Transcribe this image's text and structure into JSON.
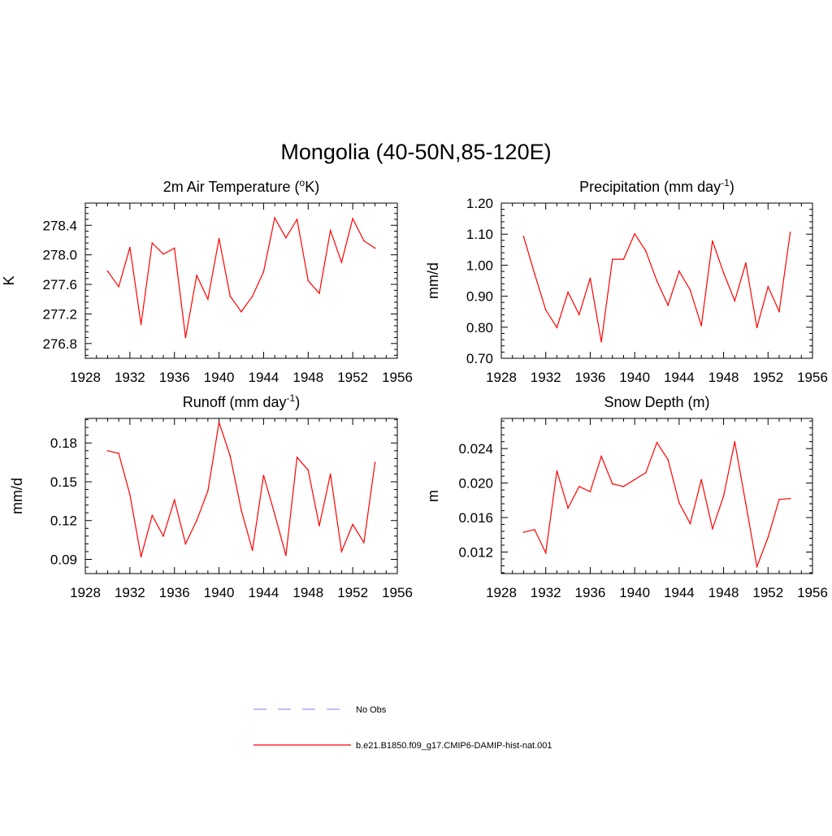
{
  "figure": {
    "title": "Mongolia (40-50N,85-120E)"
  },
  "legend": [
    {
      "label": "No Obs",
      "color": "#9999ff",
      "dash": true
    },
    {
      "label": "b.e21.B1850.f09_g17.CMIP6-DAMIP-hist-nat.001",
      "color": "#ff0000",
      "dash": false
    }
  ],
  "chart_data": [
    {
      "type": "line",
      "title": "2m Air Temperature (°K)",
      "title_base": "2m Air Temperature (",
      "title_sup": "o",
      "title_tail": "K)",
      "xlabel": "",
      "ylabel": "K",
      "xlim": [
        1928,
        1956
      ],
      "ylim": [
        276.6,
        278.7
      ],
      "xticks": [
        1928,
        1932,
        1936,
        1940,
        1944,
        1948,
        1952,
        1956
      ],
      "yticks": [
        276.8,
        277.2,
        277.6,
        278.0,
        278.4
      ],
      "ytick_labels": [
        "276.8",
        "277.2",
        "277.6",
        "278.0",
        "278.4"
      ],
      "series": [
        {
          "color": "#ff0000",
          "x": [
            1930,
            1931,
            1932,
            1933,
            1934,
            1935,
            1936,
            1937,
            1938,
            1939,
            1940,
            1941,
            1942,
            1943,
            1944,
            1945,
            1946,
            1947,
            1948,
            1949,
            1950,
            1951,
            1952,
            1953,
            1954
          ],
          "y": [
            277.78,
            277.57,
            278.1,
            277.06,
            278.16,
            278.01,
            278.09,
            276.88,
            277.72,
            277.4,
            278.22,
            277.44,
            277.23,
            277.44,
            277.77,
            278.5,
            278.23,
            278.48,
            277.65,
            277.48,
            278.33,
            277.9,
            278.49,
            278.19,
            278.09
          ]
        }
      ]
    },
    {
      "type": "line",
      "title": "Precipitation (mm day-1)",
      "title_base": "Precipitation (mm day",
      "title_sup": "-1",
      "title_tail": ")",
      "xlabel": "",
      "ylabel": "mm/d",
      "xlim": [
        1928,
        1956
      ],
      "ylim": [
        0.7,
        1.2
      ],
      "xticks": [
        1928,
        1932,
        1936,
        1940,
        1944,
        1948,
        1952,
        1956
      ],
      "yticks": [
        0.7,
        0.8,
        0.9,
        1.0,
        1.1,
        1.2
      ],
      "ytick_labels": [
        "0.70",
        "0.80",
        "0.90",
        "1.00",
        "1.10",
        "1.20"
      ],
      "series": [
        {
          "color": "#ff0000",
          "x": [
            1930,
            1931,
            1932,
            1933,
            1934,
            1935,
            1936,
            1937,
            1938,
            1939,
            1940,
            1941,
            1942,
            1943,
            1944,
            1945,
            1946,
            1947,
            1948,
            1949,
            1950,
            1951,
            1952,
            1953,
            1954
          ],
          "y": [
            1.093,
            0.972,
            0.856,
            0.799,
            0.913,
            0.841,
            0.958,
            0.753,
            1.019,
            1.019,
            1.101,
            1.046,
            0.949,
            0.871,
            0.981,
            0.92,
            0.805,
            1.078,
            0.975,
            0.885,
            1.007,
            0.799,
            0.931,
            0.851,
            1.106
          ]
        }
      ]
    },
    {
      "type": "line",
      "title": "Runoff (mm day-1)",
      "title_base": "Runoff (mm day",
      "title_sup": "-1",
      "title_tail": ")",
      "xlabel": "",
      "ylabel": "mm/d",
      "xlim": [
        1928,
        1956
      ],
      "ylim": [
        0.079,
        0.199
      ],
      "xticks": [
        1928,
        1932,
        1936,
        1940,
        1944,
        1948,
        1952,
        1956
      ],
      "yticks": [
        0.09,
        0.12,
        0.15,
        0.18
      ],
      "ytick_labels": [
        "0.09",
        "0.12",
        "0.15",
        "0.18"
      ],
      "series": [
        {
          "color": "#ff0000",
          "x": [
            1930,
            1931,
            1932,
            1933,
            1934,
            1935,
            1936,
            1937,
            1938,
            1939,
            1940,
            1941,
            1942,
            1943,
            1944,
            1945,
            1946,
            1947,
            1948,
            1949,
            1950,
            1951,
            1952,
            1953,
            1954
          ],
          "y": [
            0.174,
            0.172,
            0.14,
            0.092,
            0.124,
            0.108,
            0.136,
            0.102,
            0.12,
            0.143,
            0.196,
            0.17,
            0.128,
            0.097,
            0.155,
            0.125,
            0.093,
            0.169,
            0.159,
            0.116,
            0.156,
            0.096,
            0.117,
            0.103,
            0.165
          ]
        }
      ]
    },
    {
      "type": "line",
      "title": "Snow Depth (m)",
      "title_base": "Snow Depth (m)",
      "title_sup": "",
      "title_tail": "",
      "xlabel": "",
      "ylabel": "m",
      "xlim": [
        1928,
        1956
      ],
      "ylim": [
        0.0095,
        0.0275
      ],
      "xticks": [
        1928,
        1932,
        1936,
        1940,
        1944,
        1948,
        1952,
        1956
      ],
      "yticks": [
        0.012,
        0.016,
        0.02,
        0.024
      ],
      "ytick_labels": [
        "0.012",
        "0.016",
        "0.020",
        "0.024"
      ],
      "series": [
        {
          "color": "#ff0000",
          "x": [
            1930,
            1931,
            1932,
            1933,
            1934,
            1935,
            1936,
            1937,
            1938,
            1939,
            1940,
            1941,
            1942,
            1943,
            1944,
            1945,
            1946,
            1947,
            1948,
            1949,
            1950,
            1951,
            1952,
            1953,
            1954
          ],
          "y": [
            0.0143,
            0.0146,
            0.0119,
            0.0214,
            0.0171,
            0.0196,
            0.019,
            0.0231,
            0.0199,
            0.0196,
            0.0204,
            0.0212,
            0.0247,
            0.0227,
            0.0177,
            0.0153,
            0.0204,
            0.0147,
            0.0185,
            0.0248,
            0.0176,
            0.0103,
            0.0137,
            0.0181,
            0.0182
          ]
        }
      ]
    }
  ]
}
